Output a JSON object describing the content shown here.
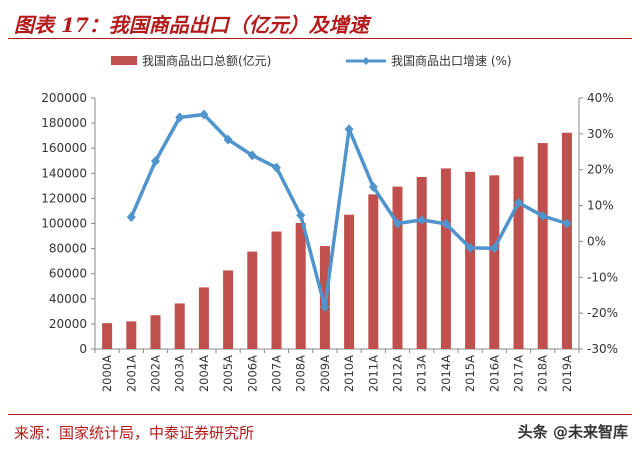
{
  "header": {
    "title": "图表 17：我国商品出口（亿元）及增速"
  },
  "footer": {
    "source": "来源：国家统计局，中泰证券研究所",
    "watermark": "头条 @未来智库"
  },
  "colors": {
    "bar": "#c0504d",
    "line": "#4f94cd",
    "title": "#b51a1a"
  },
  "chart_data": {
    "type": "bar+line",
    "title": "",
    "categories": [
      "2000A",
      "2001A",
      "2002A",
      "2003A",
      "2004A",
      "2005A",
      "2006A",
      "2007A",
      "2008A",
      "2009A",
      "2010A",
      "2011A",
      "2012A",
      "2013A",
      "2014A",
      "2015A",
      "2016A",
      "2017A",
      "2018A",
      "2019A"
    ],
    "series": [
      {
        "name": "我国商品出口总额(亿元)",
        "type": "bar",
        "axis": "left",
        "values": [
          20600,
          22000,
          26900,
          36300,
          49100,
          62600,
          77600,
          93600,
          100400,
          82000,
          107000,
          123200,
          129400,
          137100,
          143900,
          141200,
          138400,
          153300,
          164100,
          172300
        ]
      },
      {
        "name": "我国商品出口增速 (%)",
        "type": "line",
        "axis": "right",
        "values": [
          null,
          6.8,
          22.4,
          34.6,
          35.4,
          28.4,
          24.0,
          20.6,
          7.3,
          -18.3,
          31.3,
          15.2,
          5.0,
          6.0,
          4.9,
          -1.8,
          -1.9,
          10.8,
          7.1,
          5.0
        ]
      }
    ],
    "y_left": {
      "min": 0,
      "max": 200000,
      "step": 20000,
      "ticks": [
        "0",
        "20000",
        "40000",
        "60000",
        "80000",
        "100000",
        "120000",
        "140000",
        "160000",
        "180000",
        "200000"
      ]
    },
    "y_right": {
      "min": -30,
      "max": 40,
      "step": 10,
      "ticks": [
        "-30%",
        "-20%",
        "-10%",
        "0%",
        "10%",
        "20%",
        "30%",
        "40%"
      ]
    },
    "legend_position": "top",
    "grid": false
  }
}
